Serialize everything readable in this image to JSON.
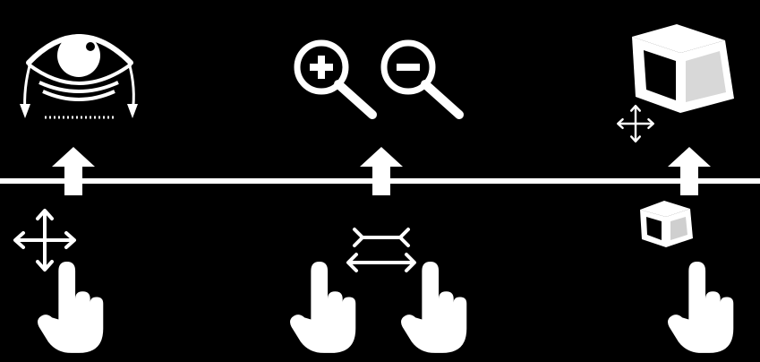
{
  "screen": {
    "background": "#000000",
    "foreground": "#ffffff",
    "panels": [
      {
        "id": "look",
        "gesture": "one-finger-drag",
        "result": "rotate-view"
      },
      {
        "id": "zoom",
        "gesture": "two-finger-pinch",
        "result": "zoom-in-out"
      },
      {
        "id": "move-object",
        "gesture": "one-finger-drag-on-object",
        "result": "move-object"
      }
    ]
  },
  "icons": {
    "divider": "horizontal-divider-line",
    "up_arrows": [
      "up-arrow-icon",
      "up-arrow-icon",
      "up-arrow-icon"
    ],
    "top": [
      "eye-orbit-icon",
      "zoom-in-icon",
      "zoom-out-icon",
      "large-cube-icon",
      "move-cross-icon"
    ],
    "bottom": [
      "move-cross-icon",
      "pinch-arrows-icon",
      "small-cube-icon",
      "pointing-hand-icon"
    ]
  }
}
